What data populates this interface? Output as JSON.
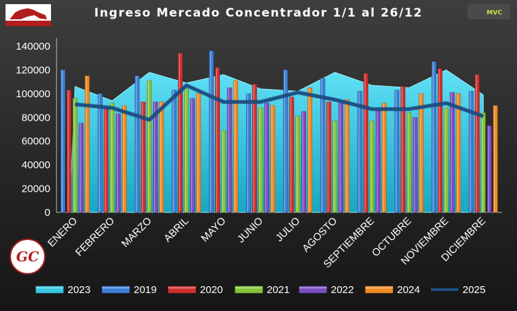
{
  "colors": {
    "2023": "#36c9e6",
    "2019": "#3b7fd6",
    "2020": "#cf2f2f",
    "2021": "#86c43a",
    "2022": "#7a4cc0",
    "2024": "#f08a24",
    "2025": "#1f4f86"
  },
  "chart_data": {
    "type": "bar",
    "title": "Ingreso Mercado Concentrador  1/1 al 26/12",
    "categories": [
      "ENERO",
      "FEBRERO",
      "MARZO",
      "ABRIL",
      "MAYO",
      "JUNIO",
      "JULIO",
      "AGOSTO",
      "SEPTIEMBRE",
      "OCTUBRE",
      "NOVIEMBRE",
      "DICIEMBRE"
    ],
    "ylim": [
      0,
      140000
    ],
    "yticks": [
      0,
      20000,
      40000,
      60000,
      80000,
      100000,
      120000,
      140000
    ],
    "grid": false,
    "legend_position": "bottom",
    "legend_order": [
      "2023",
      "2019",
      "2020",
      "2021",
      "2022",
      "2024",
      "2025"
    ],
    "area_series": {
      "name": "2023",
      "type": "area",
      "values": [
        106000,
        94000,
        118000,
        109000,
        116000,
        104000,
        102000,
        118000,
        107000,
        105000,
        120000,
        99000
      ]
    },
    "bar_series": [
      {
        "name": "2019",
        "values": [
          120000,
          100000,
          115000,
          103000,
          136000,
          100000,
          120000,
          113000,
          102000,
          103000,
          127000,
          102000
        ]
      },
      {
        "name": "2020",
        "values": [
          103000,
          87000,
          93000,
          134000,
          122000,
          108000,
          97000,
          93000,
          117000,
          106000,
          121000,
          116000
        ]
      },
      {
        "name": "2021",
        "values": [
          96000,
          92000,
          111000,
          104000,
          69000,
          88000,
          81000,
          77000,
          77000,
          84000,
          88000,
          84000
        ]
      },
      {
        "name": "2022",
        "values": [
          75000,
          83000,
          93000,
          96000,
          105000,
          92000,
          85000,
          93000,
          86000,
          80000,
          101000,
          73000
        ]
      },
      {
        "name": "2024",
        "values": [
          115000,
          90000,
          93000,
          100000,
          111000,
          90000,
          105000,
          95000,
          92000,
          100000,
          100000,
          90000
        ]
      }
    ],
    "line_series": {
      "name": "2025",
      "type": "line",
      "values": [
        91000,
        88000,
        78000,
        107000,
        93000,
        93000,
        101000,
        95000,
        87000,
        87000,
        92000,
        81000
      ]
    }
  },
  "logo": {
    "initials": "GC"
  },
  "brand": {
    "text": "MVC"
  }
}
